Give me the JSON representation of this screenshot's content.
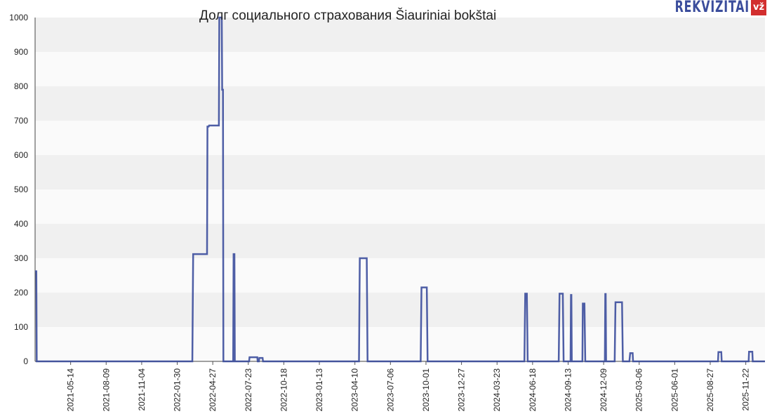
{
  "title": "Долг социального страхования Šiauriniai bokštai",
  "logo": {
    "text": "REKVIZITAI",
    "badge": "vž"
  },
  "colors": {
    "line": "#3b4d9c",
    "band": "#f0f0f0",
    "band_alt": "#fafafa",
    "badge": "#d22e2e"
  },
  "chart_data": {
    "type": "line",
    "title": "Долг социального страхования Šiauriniai bokštai",
    "xlabel": "",
    "ylabel": "",
    "ylim": [
      0,
      1000
    ],
    "yticks": [
      0,
      100,
      200,
      300,
      400,
      500,
      600,
      700,
      800,
      900,
      1000
    ],
    "xlim": [
      "2021-02-16",
      "2026-01-08"
    ],
    "xticks": [
      "2021-05-14",
      "2021-08-09",
      "2021-11-04",
      "2022-01-30",
      "2022-04-27",
      "2022-07-23",
      "2022-10-18",
      "2023-01-13",
      "2023-04-10",
      "2023-07-06",
      "2023-10-01",
      "2023-12-27",
      "2024-03-23",
      "2024-06-18",
      "2024-09-13",
      "2024-12-09",
      "2025-03-06",
      "2025-06-01",
      "2025-08-27",
      "2025-11-22"
    ],
    "grid": "horizontal bands",
    "series": [
      {
        "points": [
          [
            "2021-02-16",
            262
          ],
          [
            "2021-02-19",
            262
          ],
          [
            "2021-02-20",
            0
          ],
          [
            "2022-03-08",
            0
          ],
          [
            "2022-03-10",
            312
          ],
          [
            "2022-04-13",
            312
          ],
          [
            "2022-04-14",
            683
          ],
          [
            "2022-04-17",
            683
          ],
          [
            "2022-04-18",
            686
          ],
          [
            "2022-05-12",
            686
          ],
          [
            "2022-05-13",
            1000
          ],
          [
            "2022-05-19",
            1000
          ],
          [
            "2022-05-20",
            790
          ],
          [
            "2022-05-22",
            790
          ],
          [
            "2022-05-23",
            0
          ],
          [
            "2022-06-16",
            0
          ],
          [
            "2022-06-17",
            312
          ],
          [
            "2022-06-19",
            312
          ],
          [
            "2022-06-20",
            0
          ],
          [
            "2022-07-25",
            0
          ],
          [
            "2022-07-26",
            12
          ],
          [
            "2022-08-14",
            12
          ],
          [
            "2022-08-15",
            0
          ],
          [
            "2022-08-18",
            0
          ],
          [
            "2022-08-19",
            10
          ],
          [
            "2022-08-27",
            10
          ],
          [
            "2022-08-28",
            0
          ],
          [
            "2023-04-20",
            0
          ],
          [
            "2023-04-22",
            300
          ],
          [
            "2023-05-09",
            300
          ],
          [
            "2023-05-11",
            0
          ],
          [
            "2023-09-18",
            0
          ],
          [
            "2023-09-20",
            215
          ],
          [
            "2023-10-03",
            215
          ],
          [
            "2023-10-05",
            0
          ],
          [
            "2024-05-29",
            0
          ],
          [
            "2024-05-31",
            197
          ],
          [
            "2024-06-04",
            197
          ],
          [
            "2024-06-06",
            0
          ],
          [
            "2024-08-21",
            0
          ],
          [
            "2024-08-23",
            197
          ],
          [
            "2024-08-31",
            197
          ],
          [
            "2024-09-02",
            0
          ],
          [
            "2024-09-19",
            0
          ],
          [
            "2024-09-20",
            193
          ],
          [
            "2024-09-21",
            193
          ],
          [
            "2024-09-22",
            0
          ],
          [
            "2024-10-18",
            0
          ],
          [
            "2024-10-19",
            168
          ],
          [
            "2024-10-23",
            168
          ],
          [
            "2024-10-25",
            0
          ],
          [
            "2024-12-12",
            0
          ],
          [
            "2024-12-13",
            196
          ],
          [
            "2024-12-14",
            196
          ],
          [
            "2024-12-15",
            0
          ],
          [
            "2025-01-05",
            0
          ],
          [
            "2025-01-07",
            172
          ],
          [
            "2025-01-23",
            172
          ],
          [
            "2025-01-25",
            0
          ],
          [
            "2025-02-10",
            0
          ],
          [
            "2025-02-12",
            24
          ],
          [
            "2025-02-18",
            24
          ],
          [
            "2025-02-19",
            0
          ],
          [
            "2025-09-15",
            0
          ],
          [
            "2025-09-16",
            27
          ],
          [
            "2025-09-23",
            27
          ],
          [
            "2025-09-24",
            0
          ],
          [
            "2025-11-29",
            0
          ],
          [
            "2025-11-30",
            28
          ],
          [
            "2025-12-08",
            28
          ],
          [
            "2025-12-09",
            0
          ],
          [
            "2026-01-08",
            0
          ]
        ]
      }
    ]
  }
}
